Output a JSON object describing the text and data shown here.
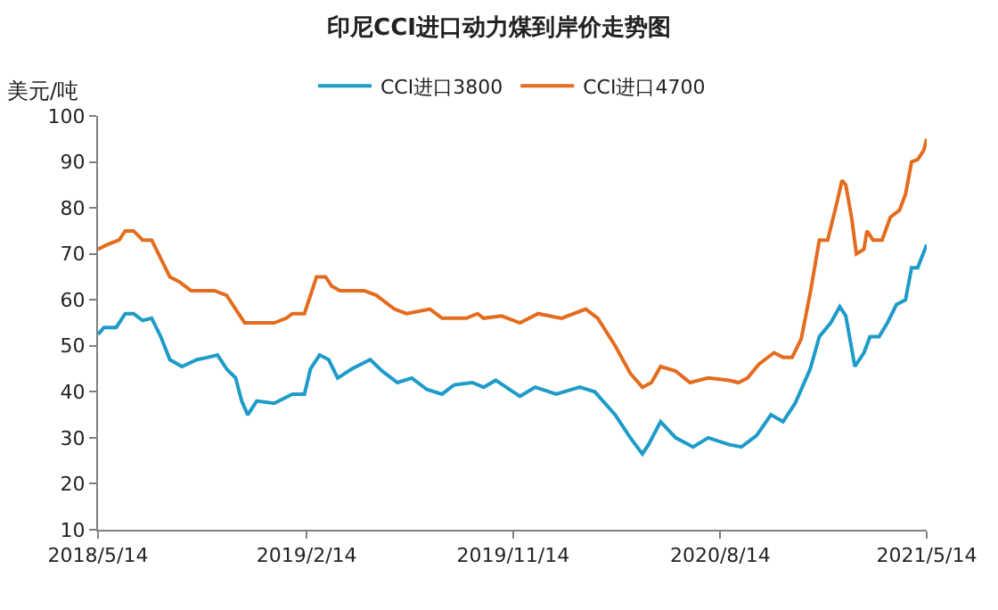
{
  "chart_data": {
    "type": "line",
    "title": "印尼CCI进口动力煤到岸价走势图",
    "ylabel": "美元/吨",
    "legend": "top",
    "marker": "none",
    "line_style": "solid",
    "xlim": [
      "2018-05-14",
      "2021-05-14"
    ],
    "xticks": [
      {
        "value": "2018-05-14",
        "label": "2018/5/14"
      },
      {
        "value": "2019-02-14",
        "label": "2019/2/14"
      },
      {
        "value": "2019-11-14",
        "label": "2019/11/14"
      },
      {
        "value": "2020-08-14",
        "label": "2020/8/14"
      },
      {
        "value": "2021-05-14",
        "label": "2021/5/14"
      }
    ],
    "ylim": [
      10,
      100
    ],
    "yticks": [
      10,
      20,
      30,
      40,
      50,
      60,
      70,
      80,
      90,
      100
    ],
    "series": [
      {
        "name": "CCI进口3800",
        "color": "#1e9bc8",
        "x": [
          "2018-05-14",
          "2018-05-22",
          "2018-06-07",
          "2018-06-19",
          "2018-06-30",
          "2018-07-12",
          "2018-07-24",
          "2018-08-05",
          "2018-08-17",
          "2018-09-02",
          "2018-09-22",
          "2018-10-07",
          "2018-10-19",
          "2018-10-31",
          "2018-11-12",
          "2018-11-20",
          "2018-11-28",
          "2018-12-10",
          "2019-01-02",
          "2019-01-26",
          "2019-02-11",
          "2019-02-19",
          "2019-03-03",
          "2019-03-15",
          "2019-03-27",
          "2019-04-15",
          "2019-05-09",
          "2019-05-25",
          "2019-06-14",
          "2019-07-03",
          "2019-07-23",
          "2019-08-12",
          "2019-08-28",
          "2019-09-21",
          "2019-10-06",
          "2019-10-22",
          "2019-11-23",
          "2019-12-13",
          "2020-01-10",
          "2020-02-10",
          "2020-03-01",
          "2020-03-28",
          "2020-04-17",
          "2020-05-03",
          "2020-05-11",
          "2020-05-27",
          "2020-06-16",
          "2020-07-09",
          "2020-07-29",
          "2020-08-26",
          "2020-09-11",
          "2020-10-01",
          "2020-10-20",
          "2020-11-05",
          "2020-11-21",
          "2020-12-11",
          "2020-12-23",
          "2021-01-07",
          "2021-01-19",
          "2021-01-27",
          "2021-02-08",
          "2021-02-20",
          "2021-02-28",
          "2021-03-12",
          "2021-03-23",
          "2021-04-04",
          "2021-04-16",
          "2021-04-24",
          "2021-05-02",
          "2021-05-14"
        ],
        "values": [
          52.5,
          54,
          54,
          57,
          57,
          55.5,
          56,
          52,
          47,
          45.5,
          47,
          47.5,
          48,
          45,
          43,
          38,
          35,
          38,
          37.5,
          39.5,
          39.5,
          45,
          48,
          47,
          43,
          45,
          47,
          44.5,
          42,
          43,
          40.5,
          39.5,
          41.5,
          42,
          41,
          42.5,
          39,
          41,
          39.5,
          41,
          40,
          35,
          30,
          26.5,
          28.5,
          33.5,
          30,
          28,
          30,
          28.5,
          28,
          30.5,
          35,
          33.5,
          37.5,
          45,
          52,
          55,
          58.5,
          56.5,
          45.5,
          48.5,
          52,
          52,
          55,
          59,
          60,
          67,
          67,
          72
        ]
      },
      {
        "name": "CCI进口4700",
        "color": "#e46c1e",
        "x": [
          "2018-05-14",
          "2018-05-26",
          "2018-06-11",
          "2018-06-19",
          "2018-06-30",
          "2018-07-12",
          "2018-07-24",
          "2018-08-05",
          "2018-08-17",
          "2018-08-29",
          "2018-09-14",
          "2018-09-29",
          "2018-10-15",
          "2018-10-31",
          "2018-11-12",
          "2018-11-24",
          "2018-12-10",
          "2019-01-02",
          "2019-01-18",
          "2019-01-26",
          "2019-02-11",
          "2019-02-19",
          "2019-02-27",
          "2019-03-11",
          "2019-03-19",
          "2019-03-30",
          "2019-05-01",
          "2019-05-17",
          "2019-06-10",
          "2019-06-26",
          "2019-07-27",
          "2019-08-12",
          "2019-09-13",
          "2019-09-28",
          "2019-10-06",
          "2019-10-30",
          "2019-11-23",
          "2019-12-17",
          "2020-01-17",
          "2020-02-18",
          "2020-03-05",
          "2020-03-28",
          "2020-04-17",
          "2020-05-03",
          "2020-05-15",
          "2020-05-27",
          "2020-06-16",
          "2020-07-05",
          "2020-07-29",
          "2020-08-26",
          "2020-09-07",
          "2020-09-19",
          "2020-10-04",
          "2020-10-24",
          "2020-11-05",
          "2020-11-17",
          "2020-11-29",
          "2020-12-11",
          "2020-12-23",
          "2021-01-03",
          "2021-01-15",
          "2021-01-22",
          "2021-01-27",
          "2021-02-04",
          "2021-02-10",
          "2021-02-20",
          "2021-02-24",
          "2021-03-04",
          "2021-03-16",
          "2021-03-27",
          "2021-04-08",
          "2021-04-16",
          "2021-04-24",
          "2021-05-02",
          "2021-05-10",
          "2021-05-14"
        ],
        "values": [
          71,
          72,
          73,
          75,
          75,
          73,
          73,
          69,
          65,
          64,
          62,
          62,
          62,
          61,
          58,
          55,
          55,
          55,
          56,
          57,
          57,
          61,
          65,
          65,
          63,
          62,
          62,
          61,
          58,
          57,
          58,
          56,
          56,
          57,
          56,
          56.5,
          55,
          57,
          56,
          58,
          56,
          50,
          44,
          41,
          42,
          45.5,
          44.5,
          42,
          43,
          42.5,
          42,
          43,
          46,
          48.5,
          47.5,
          47.5,
          51.5,
          61.5,
          73,
          73,
          81,
          86,
          85,
          77.5,
          70,
          71,
          75,
          73,
          73,
          78,
          79.5,
          83,
          90,
          90.5,
          92.5,
          95
        ]
      }
    ]
  }
}
